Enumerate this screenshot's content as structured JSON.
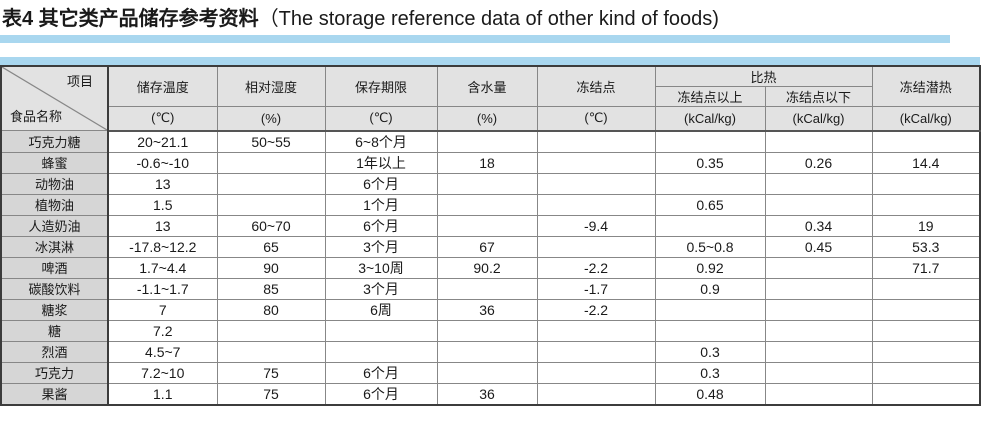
{
  "title": {
    "zh": "表4 其它类产品储存参考资料",
    "en": "（The storage reference data of other kind of foods)"
  },
  "colors": {
    "accent_bar": "#a9d7ef",
    "header_bg": "#e2e2e2",
    "name_column_bg": "#d6d6d6",
    "grid_line": "#878787",
    "outer_border": "#3c3c3c"
  },
  "table": {
    "corner": {
      "top_right": "项目",
      "bottom_left": "食品名称"
    },
    "group_header": "比热",
    "columns": [
      {
        "label": "储存温度",
        "unit": "(℃)"
      },
      {
        "label": "相对湿度",
        "unit": "(%)"
      },
      {
        "label": "保存期限",
        "unit": "(℃)"
      },
      {
        "label": "含水量",
        "unit": "(%)"
      },
      {
        "label": "冻结点",
        "unit": "(℃)"
      },
      {
        "label": "冻结点以上",
        "unit": "(kCal/kg)"
      },
      {
        "label": "冻结点以下",
        "unit": "(kCal/kg)"
      },
      {
        "label": "冻结潜热",
        "unit": "(kCal/kg)"
      }
    ],
    "rows": [
      {
        "name": "巧克力糖",
        "cells": [
          "20~21.1",
          "50~55",
          "6~8个月",
          "",
          "",
          "",
          "",
          ""
        ]
      },
      {
        "name": "蜂蜜",
        "cells": [
          "-0.6~-10",
          "",
          "1年以上",
          "18",
          "",
          "0.35",
          "0.26",
          "14.4"
        ]
      },
      {
        "name": "动物油",
        "cells": [
          "13",
          "",
          "6个月",
          "",
          "",
          "",
          "",
          ""
        ]
      },
      {
        "name": "植物油",
        "cells": [
          "1.5",
          "",
          "1个月",
          "",
          "",
          "0.65",
          "",
          ""
        ]
      },
      {
        "name": "人造奶油",
        "cells": [
          "13",
          "60~70",
          "6个月",
          "",
          "-9.4",
          "",
          "0.34",
          "19"
        ]
      },
      {
        "name": "冰淇淋",
        "cells": [
          "-17.8~12.2",
          "65",
          "3个月",
          "67",
          "",
          "0.5~0.8",
          "0.45",
          "53.3"
        ]
      },
      {
        "name": "啤酒",
        "cells": [
          "1.7~4.4",
          "90",
          "3~10周",
          "90.2",
          "-2.2",
          "0.92",
          "",
          "71.7"
        ]
      },
      {
        "name": "碳酸饮料",
        "cells": [
          "-1.1~1.7",
          "85",
          "3个月",
          "",
          "-1.7",
          "0.9",
          "",
          ""
        ]
      },
      {
        "name": "糖浆",
        "cells": [
          "7",
          "80",
          "6周",
          "36",
          "-2.2",
          "",
          "",
          ""
        ]
      },
      {
        "name": "糖",
        "cells": [
          "7.2",
          "",
          "",
          "",
          "",
          "",
          "",
          ""
        ]
      },
      {
        "name": "烈酒",
        "cells": [
          "4.5~7",
          "",
          "",
          "",
          "",
          "0.3",
          "",
          ""
        ]
      },
      {
        "name": "巧克力",
        "cells": [
          "7.2~10",
          "75",
          "6个月",
          "",
          "",
          "0.3",
          "",
          ""
        ]
      },
      {
        "name": "果酱",
        "cells": [
          "1.1",
          "75",
          "6个月",
          "36",
          "",
          "0.48",
          "",
          ""
        ]
      }
    ]
  }
}
